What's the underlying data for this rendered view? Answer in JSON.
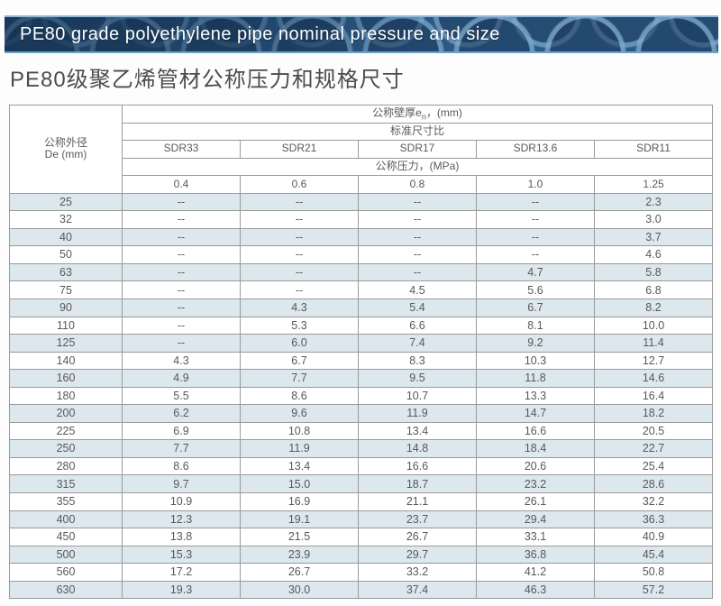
{
  "banner": {
    "title": "PE80 grade polyethylene pipe nominal pressure and size"
  },
  "page": {
    "title_zh": "PE80级聚乙烯管材公称压力和规格尺寸"
  },
  "table": {
    "diameter_header_line1": "公称外径",
    "diameter_header_line2": "De (mm)",
    "wall_thickness_prefix": "公称壁厚e",
    "wall_thickness_sub": "n",
    "wall_thickness_suffix": "，(mm)",
    "sdr_header": "标准尺寸比",
    "sdr_labels": [
      "SDR33",
      "SDR21",
      "SDR17",
      "SDR13.6",
      "SDR11"
    ],
    "pressure_header": "公称压力，(MPa)",
    "pressure_values": [
      "0.4",
      "0.6",
      "0.8",
      "1.0",
      "1.25"
    ],
    "rows": [
      {
        "de": "25",
        "values": [
          "--",
          "--",
          "--",
          "--",
          "2.3"
        ]
      },
      {
        "de": "32",
        "values": [
          "--",
          "--",
          "--",
          "--",
          "3.0"
        ]
      },
      {
        "de": "40",
        "values": [
          "--",
          "--",
          "--",
          "--",
          "3.7"
        ]
      },
      {
        "de": "50",
        "values": [
          "--",
          "--",
          "--",
          "--",
          "4.6"
        ]
      },
      {
        "de": "63",
        "values": [
          "--",
          "--",
          "--",
          "4.7",
          "5.8"
        ]
      },
      {
        "de": "75",
        "values": [
          "--",
          "--",
          "4.5",
          "5.6",
          "6.8"
        ]
      },
      {
        "de": "90",
        "values": [
          "--",
          "4.3",
          "5.4",
          "6.7",
          "8.2"
        ]
      },
      {
        "de": "110",
        "values": [
          "--",
          "5.3",
          "6.6",
          "8.1",
          "10.0"
        ]
      },
      {
        "de": "125",
        "values": [
          "--",
          "6.0",
          "7.4",
          "9.2",
          "11.4"
        ]
      },
      {
        "de": "140",
        "values": [
          "4.3",
          "6.7",
          "8.3",
          "10.3",
          "12.7"
        ]
      },
      {
        "de": "160",
        "values": [
          "4.9",
          "7.7",
          "9.5",
          "11.8",
          "14.6"
        ]
      },
      {
        "de": "180",
        "values": [
          "5.5",
          "8.6",
          "10.7",
          "13.3",
          "16.4"
        ]
      },
      {
        "de": "200",
        "values": [
          "6.2",
          "9.6",
          "11.9",
          "14.7",
          "18.2"
        ]
      },
      {
        "de": "225",
        "values": [
          "6.9",
          "10.8",
          "13.4",
          "16.6",
          "20.5"
        ]
      },
      {
        "de": "250",
        "values": [
          "7.7",
          "11.9",
          "14.8",
          "18.4",
          "22.7"
        ]
      },
      {
        "de": "280",
        "values": [
          "8.6",
          "13.4",
          "16.6",
          "20.6",
          "25.4"
        ]
      },
      {
        "de": "315",
        "values": [
          "9.7",
          "15.0",
          "18.7",
          "23.2",
          "28.6"
        ]
      },
      {
        "de": "355",
        "values": [
          "10.9",
          "16.9",
          "21.1",
          "26.1",
          "32.2"
        ]
      },
      {
        "de": "400",
        "values": [
          "12.3",
          "19.1",
          "23.7",
          "29.4",
          "36.3"
        ]
      },
      {
        "de": "450",
        "values": [
          "13.8",
          "21.5",
          "26.7",
          "33.1",
          "40.9"
        ]
      },
      {
        "de": "500",
        "values": [
          "15.3",
          "23.9",
          "29.7",
          "36.8",
          "45.4"
        ]
      },
      {
        "de": "560",
        "values": [
          "17.2",
          "26.7",
          "33.2",
          "41.2",
          "50.8"
        ]
      },
      {
        "de": "630",
        "values": [
          "19.3",
          "30.0",
          "37.4",
          "46.3",
          "57.2"
        ]
      }
    ]
  },
  "colors": {
    "banner_bg": "#2d5a84",
    "banner_ring": "#7daacd",
    "row_alt": "#dce7ee",
    "border_color": "#9a9a9a",
    "text_color": "#595959",
    "title_color": "#4c4c4c"
  }
}
